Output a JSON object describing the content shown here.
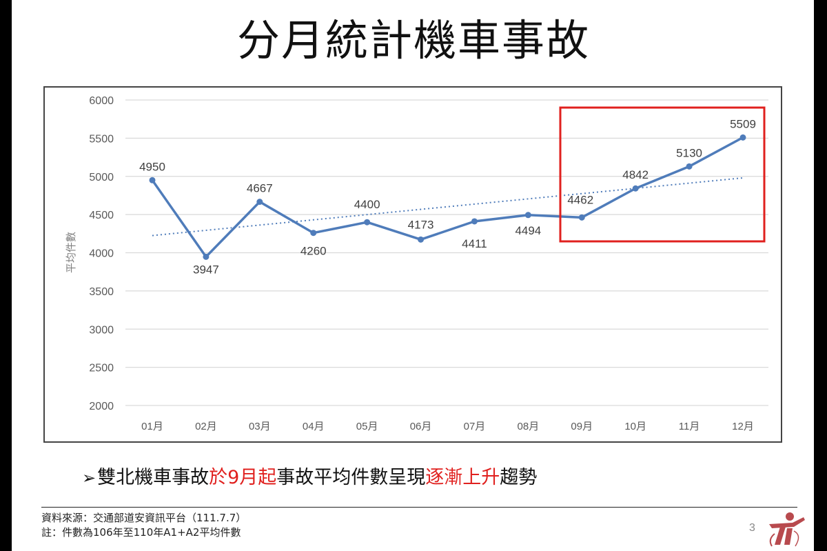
{
  "slide": {
    "title": "分月統計機車事故",
    "page_number": "3",
    "bullet": {
      "segments": [
        {
          "text": "雙北機車事故",
          "color": "#111111"
        },
        {
          "text": "於9月起",
          "color": "#e0201e"
        },
        {
          "text": "事故平均件數呈現",
          "color": "#111111"
        },
        {
          "text": "逐漸上升",
          "color": "#e0201e"
        },
        {
          "text": "趨勢",
          "color": "#111111"
        }
      ]
    },
    "footer": {
      "source": "資料來源：交通部道安資訊平台（111.7.7）",
      "note": "註：件數為106年至110年A1+A2平均件數"
    },
    "highlight_box_color": "#e0201e"
  },
  "chart_data": {
    "type": "line",
    "title": "",
    "xlabel": "",
    "ylabel": "平均件數",
    "categories": [
      "01月",
      "02月",
      "03月",
      "04月",
      "05月",
      "06月",
      "07月",
      "08月",
      "09月",
      "10月",
      "11月",
      "12月"
    ],
    "series": [
      {
        "name": "平均件數",
        "values": [
          4950,
          3947,
          4667,
          4260,
          4400,
          4173,
          4411,
          4494,
          4462,
          4842,
          5130,
          5509
        ],
        "color": "#4f7cba"
      },
      {
        "name": "線性趨勢線",
        "style": "dotted",
        "values": [
          4225,
          4980
        ],
        "color": "#4f7cba"
      }
    ],
    "ylim": [
      2000,
      6000
    ],
    "yticks": [
      2000,
      2500,
      3000,
      3500,
      4000,
      4500,
      5000,
      5500,
      6000
    ],
    "grid": true,
    "legend": "none",
    "data_labels": true,
    "annotations": [
      {
        "type": "rectangle",
        "range": [
          "09月",
          "12月"
        ],
        "color": "#e0201e"
      }
    ]
  }
}
